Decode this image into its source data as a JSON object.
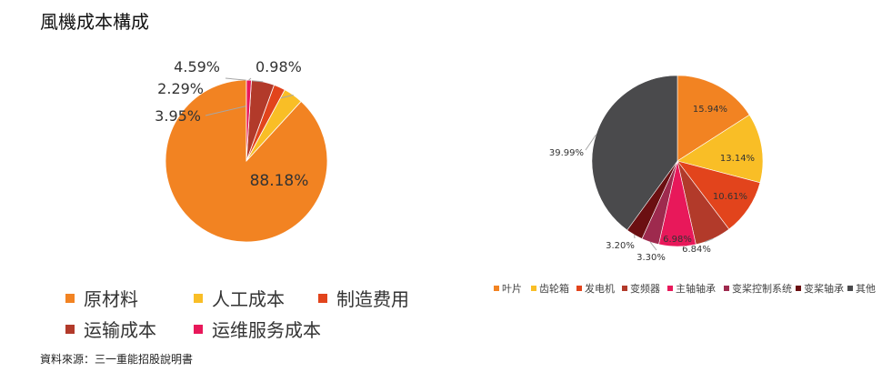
{
  "title": "風機成本構成",
  "source": "資料來源：三一重能招股說明書",
  "chart_data": [
    {
      "type": "pie",
      "categories": [
        "原材料",
        "人工成本",
        "制造费用",
        "运输成本",
        "运维服务成本"
      ],
      "values": [
        88.18,
        3.95,
        2.29,
        4.59,
        0.98
      ],
      "labels": [
        "88.18%",
        "3.95%",
        "2.29%",
        "4.59%",
        "0.98%"
      ],
      "colors": [
        "#F28322",
        "#F9BE26",
        "#E2441C",
        "#B23A2A",
        "#E8185A"
      ],
      "legend_position": "bottom"
    },
    {
      "type": "pie",
      "categories": [
        "叶片",
        "齿轮箱",
        "发电机",
        "变频器",
        "主轴轴承",
        "变桨控制系统",
        "变桨轴承",
        "其他"
      ],
      "values": [
        15.94,
        13.14,
        10.61,
        6.84,
        6.98,
        3.3,
        3.2,
        39.99
      ],
      "labels": [
        "15.94%",
        "13.14%",
        "10.61%",
        "6.84%",
        "6.98%",
        "3.30%",
        "3.20%",
        "39.99%"
      ],
      "colors": [
        "#F28322",
        "#F9BE26",
        "#E2441C",
        "#B23A2A",
        "#E8185A",
        "#9E2A4E",
        "#6B0F12",
        "#4A4A4C"
      ],
      "legend_position": "bottom"
    }
  ]
}
